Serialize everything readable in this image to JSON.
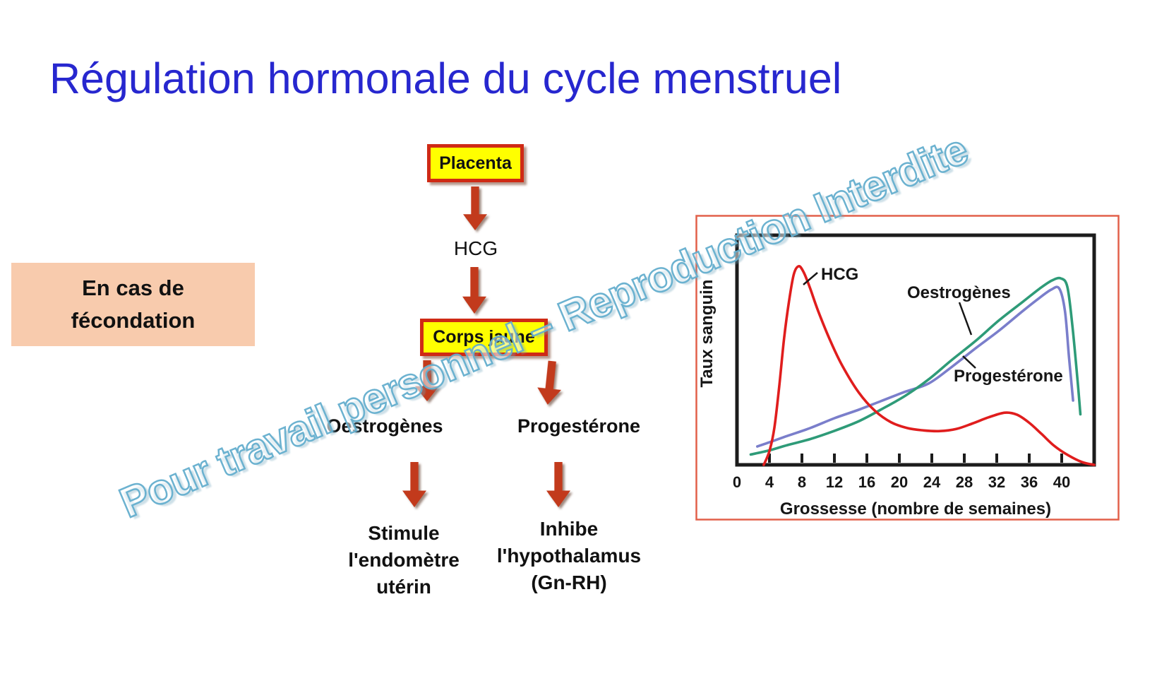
{
  "slide": {
    "title": "Régulation hormonale du cycle menstruel",
    "watermark": "Pour travail personnel – Reproduction Interdite",
    "condition_box": {
      "lines": [
        "En cas de",
        "fécondation"
      ]
    },
    "flowchart": {
      "placenta_label": "Placenta",
      "hcg_label": "HCG",
      "corps_jaune_label": "Corps jaune",
      "oestrogenes_label": "Oestrogènes",
      "progesterone_label": "Progestérone",
      "stimule_lines": [
        "Stimule",
        "l'endomètre",
        "utérin"
      ],
      "inhibe_lines": [
        "Inhibe",
        "l'hypothalamus",
        "(Gn-RH)"
      ]
    },
    "colors": {
      "title_blue": "#2727cf",
      "watermark_outline": "#64aecd",
      "condition_box_bg": "#f8cbad",
      "hormone_box_fill": "#ffff00",
      "hormone_box_border": "#cf2a15",
      "arrow_red": "#c23a1c",
      "chart_frame_red": "#e2604a",
      "axis_black": "#1c1c1c"
    }
  },
  "chart_data": {
    "type": "line",
    "title": "",
    "xlabel": "Grossesse (nombre de semaines)",
    "ylabel": "Taux sanguin",
    "x_ticks": [
      0,
      4,
      8,
      12,
      16,
      20,
      24,
      28,
      32,
      36,
      40
    ],
    "xlim": [
      0,
      44
    ],
    "ylim": [
      0,
      100
    ],
    "grid": false,
    "legend": "inline labels with leader lines",
    "series": [
      {
        "name": "HCG",
        "color": "#e01d1d",
        "points": [
          [
            3.3,
            0
          ],
          [
            4,
            6
          ],
          [
            4.6,
            16
          ],
          [
            5.2,
            34
          ],
          [
            5.8,
            55
          ],
          [
            6.4,
            71
          ],
          [
            7,
            83
          ],
          [
            7.6,
            86.5
          ],
          [
            8.2,
            84
          ],
          [
            9,
            77
          ],
          [
            10,
            67
          ],
          [
            11.5,
            54
          ],
          [
            13,
            43
          ],
          [
            15,
            31.5
          ],
          [
            17,
            23.5
          ],
          [
            19,
            18.5
          ],
          [
            21,
            16
          ],
          [
            23,
            15
          ],
          [
            25,
            14.7
          ],
          [
            27,
            15.6
          ],
          [
            29,
            18
          ],
          [
            31,
            20.7
          ],
          [
            33,
            22.7
          ],
          [
            34.5,
            21.8
          ],
          [
            36,
            18.3
          ],
          [
            37.5,
            13.5
          ],
          [
            39,
            8.5
          ],
          [
            40.5,
            4.8
          ],
          [
            42.5,
            1.2
          ],
          [
            44,
            0
          ]
        ]
      },
      {
        "name": "Oestrogènes",
        "color": "#2e9b78",
        "points": [
          [
            1.7,
            4.5
          ],
          [
            4,
            6.3
          ],
          [
            6.2,
            8.6
          ],
          [
            9,
            11.2
          ],
          [
            12,
            14.8
          ],
          [
            15,
            19
          ],
          [
            17.7,
            24
          ],
          [
            20.7,
            30
          ],
          [
            23.6,
            37.2
          ],
          [
            26.4,
            45.5
          ],
          [
            29.4,
            54
          ],
          [
            32.3,
            63
          ],
          [
            35.2,
            71
          ],
          [
            37.3,
            76.8
          ],
          [
            38.8,
            80.3
          ],
          [
            39.9,
            81.2
          ],
          [
            40.7,
            77.5
          ],
          [
            41.3,
            61
          ],
          [
            41.9,
            39
          ],
          [
            42.3,
            22
          ]
        ]
      },
      {
        "name": "Progestérone",
        "color": "#7a7ecb",
        "points": [
          [
            2.5,
            8
          ],
          [
            4,
            9.8
          ],
          [
            6.2,
            12.6
          ],
          [
            9,
            16
          ],
          [
            12,
            20.3
          ],
          [
            15,
            24
          ],
          [
            17.7,
            27.7
          ],
          [
            20.7,
            31.8
          ],
          [
            23.6,
            35.4
          ],
          [
            26.4,
            42.5
          ],
          [
            29.4,
            50.8
          ],
          [
            32.3,
            58.5
          ],
          [
            35.2,
            67
          ],
          [
            37.3,
            72.8
          ],
          [
            38.7,
            76.3
          ],
          [
            39.7,
            76.8
          ],
          [
            40.4,
            67
          ],
          [
            40.9,
            47
          ],
          [
            41.4,
            28
          ]
        ]
      }
    ]
  }
}
